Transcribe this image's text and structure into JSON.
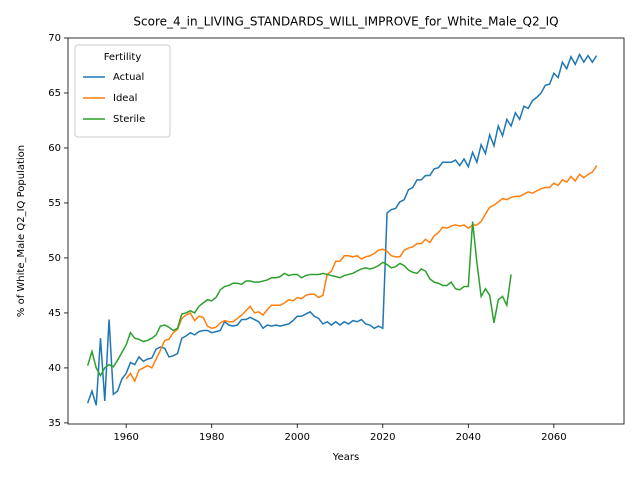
{
  "chart_data": {
    "type": "line",
    "title": "Score_4_in_LIVING_STANDARDS_WILL_IMPROVE_for_White_Male_Q2_IQ",
    "xlabel": "Years",
    "ylabel": "% of White_Male Q2_IQ Population",
    "legend_title": "Fertility",
    "legend_loc": "upper left",
    "grid": false,
    "xlim": [
      1946.4,
      2076.4
    ],
    "ylim": [
      34.9,
      70.0
    ],
    "xticks": [
      1960,
      1980,
      2000,
      2020,
      2040,
      2060
    ],
    "yticks": [
      35,
      40,
      45,
      50,
      55,
      60,
      65,
      70
    ],
    "x": [
      1951,
      1952,
      1953,
      1954,
      1955,
      1956,
      1957,
      1958,
      1959,
      1960,
      1961,
      1962,
      1963,
      1964,
      1965,
      1966,
      1967,
      1968,
      1969,
      1970,
      1971,
      1972,
      1973,
      1974,
      1975,
      1976,
      1977,
      1978,
      1979,
      1980,
      1981,
      1982,
      1983,
      1984,
      1985,
      1986,
      1987,
      1988,
      1989,
      1990,
      1991,
      1992,
      1993,
      1994,
      1995,
      1996,
      1997,
      1998,
      1999,
      2000,
      2001,
      2002,
      2003,
      2004,
      2005,
      2006,
      2007,
      2008,
      2009,
      2010,
      2011,
      2012,
      2013,
      2014,
      2015,
      2016,
      2017,
      2018,
      2019,
      2020,
      2021,
      2022,
      2023,
      2024,
      2025,
      2026,
      2027,
      2028,
      2029,
      2030,
      2031,
      2032,
      2033,
      2034,
      2035,
      2036,
      2037,
      2038,
      2039,
      2040,
      2041,
      2042,
      2043,
      2044,
      2045,
      2046,
      2047,
      2048,
      2049,
      2050,
      2051,
      2052,
      2053,
      2054,
      2055,
      2056,
      2057,
      2058,
      2059,
      2060,
      2061,
      2062,
      2063,
      2064,
      2065,
      2066,
      2067,
      2068,
      2069,
      2070
    ],
    "series": [
      {
        "name": "Actual",
        "color": "#1f77b4",
        "values": [
          36.8,
          37.9,
          36.6,
          42.7,
          37.0,
          44.4,
          37.6,
          37.9,
          39.0,
          39.5,
          40.5,
          40.3,
          41.0,
          40.6,
          40.8,
          40.9,
          41.7,
          41.9,
          41.8,
          41.0,
          41.1,
          41.3,
          42.7,
          42.9,
          43.2,
          43.0,
          43.3,
          43.4,
          43.4,
          43.2,
          43.3,
          43.4,
          44.2,
          43.9,
          43.8,
          43.9,
          44.4,
          44.4,
          44.6,
          44.4,
          44.2,
          43.6,
          43.9,
          43.8,
          43.9,
          43.8,
          43.9,
          44.0,
          44.3,
          44.7,
          44.7,
          44.9,
          45.1,
          44.7,
          44.5,
          44.0,
          44.2,
          43.9,
          44.2,
          43.9,
          44.2,
          44.0,
          44.3,
          44.2,
          44.4,
          44.0,
          43.9,
          43.6,
          43.8,
          43.6,
          54.1,
          54.4,
          54.5,
          55.1,
          55.3,
          56.2,
          56.4,
          57.1,
          57.1,
          57.5,
          57.5,
          58.1,
          58.2,
          58.7,
          58.7,
          58.7,
          58.9,
          58.4,
          59.0,
          58.3,
          59.6,
          58.7,
          60.3,
          59.5,
          61.2,
          60.2,
          62.0,
          61.1,
          62.6,
          62.0,
          63.2,
          62.6,
          63.8,
          63.6,
          64.3,
          64.6,
          65.0,
          65.7,
          65.8,
          66.8,
          66.4,
          67.8,
          67.2,
          68.3,
          67.6,
          68.5,
          67.8,
          68.4,
          67.8,
          68.4
        ]
      },
      {
        "name": "Ideal",
        "color": "#ff7f0e",
        "values": [
          null,
          null,
          null,
          null,
          null,
          null,
          null,
          null,
          null,
          39.0,
          39.5,
          38.8,
          39.8,
          40.0,
          40.2,
          40.0,
          40.8,
          41.6,
          42.5,
          42.6,
          43.2,
          43.5,
          44.5,
          44.8,
          45.0,
          44.3,
          44.7,
          44.6,
          43.8,
          43.6,
          43.7,
          44.1,
          44.3,
          44.2,
          44.2,
          44.5,
          44.8,
          45.2,
          45.6,
          45.0,
          45.1,
          44.8,
          45.3,
          45.7,
          45.7,
          45.7,
          45.9,
          46.2,
          46.1,
          46.4,
          46.3,
          46.6,
          46.7,
          46.7,
          46.4,
          46.6,
          48.5,
          48.8,
          49.7,
          49.7,
          50.2,
          50.2,
          50.1,
          50.2,
          49.9,
          50.1,
          50.2,
          50.4,
          50.7,
          50.8,
          50.6,
          50.2,
          50.1,
          50.1,
          50.7,
          50.9,
          51.0,
          51.3,
          51.3,
          51.7,
          51.4,
          52.0,
          52.3,
          52.8,
          52.7,
          52.9,
          53.0,
          52.9,
          53.0,
          52.7,
          53.0,
          53.0,
          53.3,
          54.0,
          54.6,
          54.8,
          55.1,
          55.4,
          55.3,
          55.5,
          55.6,
          55.6,
          55.8,
          56.0,
          55.9,
          56.1,
          56.3,
          56.4,
          56.4,
          56.8,
          56.6,
          57.1,
          56.9,
          57.4,
          57.0,
          57.6,
          57.3,
          57.6,
          57.8,
          58.4
        ]
      },
      {
        "name": "Sterile",
        "color": "#2ca02c",
        "values": [
          40.2,
          41.5,
          40.0,
          39.3,
          40.0,
          40.3,
          40.1,
          40.7,
          41.4,
          42.1,
          43.2,
          42.7,
          42.6,
          42.4,
          42.5,
          42.7,
          43.0,
          43.8,
          43.9,
          43.7,
          43.4,
          43.6,
          44.9,
          45.0,
          45.2,
          45.0,
          45.6,
          45.9,
          46.2,
          46.1,
          46.4,
          47.1,
          47.4,
          47.5,
          47.7,
          47.7,
          47.6,
          47.9,
          47.9,
          47.8,
          47.8,
          47.9,
          48.0,
          48.2,
          48.2,
          48.3,
          48.6,
          48.4,
          48.5,
          48.5,
          48.2,
          48.4,
          48.5,
          48.5,
          48.5,
          48.6,
          48.5,
          48.4,
          48.3,
          48.2,
          48.4,
          48.5,
          48.6,
          48.8,
          49.0,
          49.1,
          49.0,
          49.1,
          49.3,
          49.6,
          49.4,
          49.1,
          49.2,
          49.5,
          49.3,
          48.9,
          48.7,
          48.6,
          49.0,
          48.8,
          48.1,
          47.8,
          47.7,
          47.5,
          47.5,
          47.8,
          47.2,
          47.1,
          47.4,
          47.4,
          53.3,
          49.6,
          46.5,
          47.2,
          46.6,
          44.1,
          46.2,
          46.5,
          45.7,
          48.5,
          null,
          null,
          null,
          null,
          null,
          null,
          null,
          null,
          null,
          null,
          null,
          null,
          null,
          null,
          null,
          null,
          null,
          null,
          null,
          null
        ]
      }
    ]
  }
}
